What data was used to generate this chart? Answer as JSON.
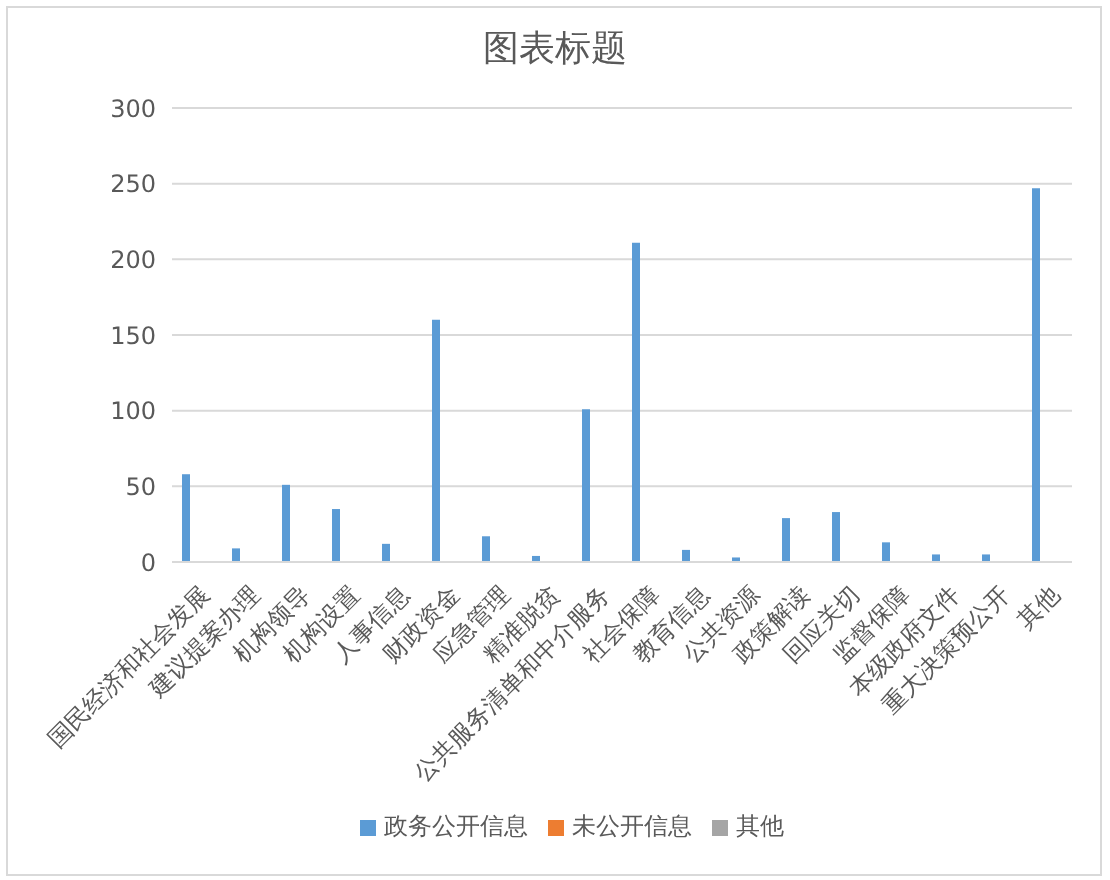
{
  "chart_data": {
    "type": "bar",
    "title": "图表标题",
    "categories": [
      "国民经济和社会发展",
      "建议提案办理",
      "机构领导",
      "机构设置",
      "人事信息",
      "财政资金",
      "应急管理",
      "精准脱贫",
      "公共服务清单和中介服务",
      "社会保障",
      "教育信息",
      "公共资源",
      "政策解读",
      "回应关切",
      "监督保障",
      "本级政府文件",
      "重大决策预公开",
      "其他"
    ],
    "series": [
      {
        "name": "政务公开信息",
        "color": "#5b9bd5",
        "values": [
          58,
          9,
          51,
          35,
          12,
          160,
          17,
          4,
          101,
          211,
          8,
          3,
          29,
          33,
          13,
          5,
          5,
          247
        ]
      },
      {
        "name": "未公开信息",
        "color": "#ed7d31",
        "values": [
          null,
          null,
          null,
          null,
          null,
          null,
          null,
          null,
          null,
          null,
          null,
          null,
          null,
          null,
          null,
          null,
          null,
          null
        ]
      },
      {
        "name": "其他",
        "color": "#a5a5a5",
        "values": [
          null,
          null,
          null,
          null,
          null,
          null,
          null,
          null,
          null,
          null,
          null,
          null,
          null,
          null,
          null,
          null,
          null,
          null
        ]
      }
    ],
    "ylim": [
      0,
      300
    ],
    "yticks": [
      0,
      50,
      100,
      150,
      200,
      250,
      300
    ],
    "grid": "y",
    "legend": "bottom"
  }
}
